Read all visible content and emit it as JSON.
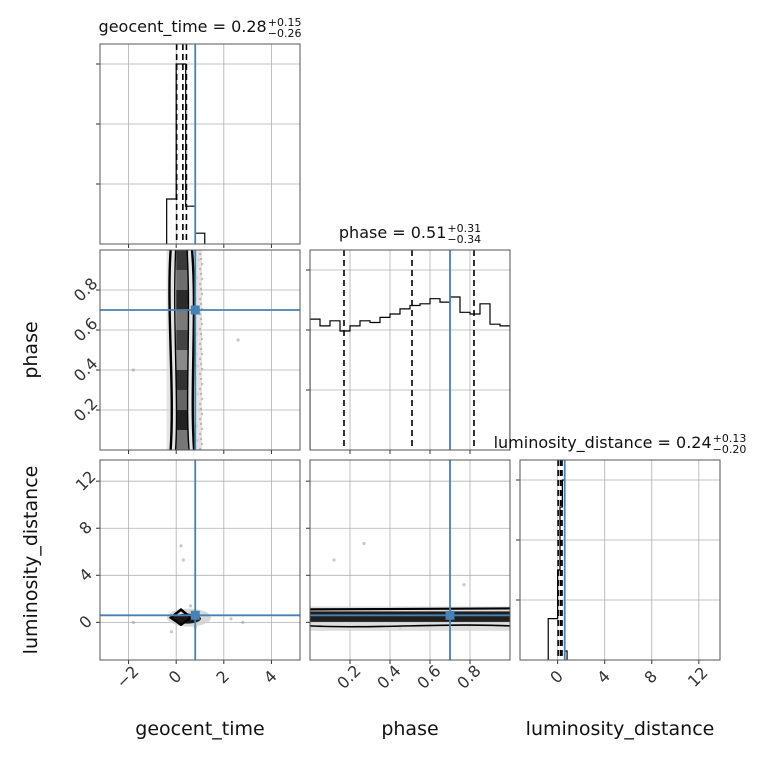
{
  "chart_data": {
    "type": "corner",
    "colors": {
      "truth": "#4682b4",
      "hist": "#000000",
      "grid": "#b0b0b0",
      "scatter": "#9a9a9a"
    },
    "parameters": [
      "geocent_time",
      "phase",
      "luminosity_distance"
    ],
    "truths": {
      "geocent_time": 0.8,
      "phase": 0.7,
      "luminosity_distance": 0.6
    },
    "titles": [
      {
        "param": "geocent_time",
        "main": "geocent_time = 0.28",
        "sup": "+0.15",
        "sub": "−0.26"
      },
      {
        "param": "phase",
        "main": "phase = 0.51",
        "sup": "+0.31",
        "sub": "−0.34"
      },
      {
        "param": "luminosity_distance",
        "main": "luminosity_distance = 0.24",
        "sup": "+0.13",
        "sub": "−0.20"
      }
    ],
    "axes": {
      "geocent_time": {
        "range": [
          -3.2,
          5.2
        ],
        "ticks": [
          -2,
          0,
          2,
          4
        ],
        "tick_labels": [
          "−2",
          "0",
          "2",
          "4"
        ],
        "label": "geocent_time"
      },
      "phase": {
        "range": [
          0.0,
          1.0
        ],
        "ticks": [
          0.2,
          0.4,
          0.6,
          0.8
        ],
        "tick_labels": [
          "0.2",
          "0.4",
          "0.6",
          "0.8"
        ],
        "label": "phase"
      },
      "luminosity_distance": {
        "range": [
          -3.2,
          13.8
        ],
        "ticks": [
          0,
          4,
          8,
          12
        ],
        "tick_labels": [
          "0",
          "4",
          "8",
          "12"
        ],
        "label": "luminosity_distance"
      }
    },
    "marginals": {
      "geocent_time": {
        "bins": [
          -0.4,
          0.0,
          0.4,
          0.8,
          1.2
        ],
        "counts": [
          0.25,
          1.0,
          0.21,
          0.06
        ],
        "quantiles": [
          0.02,
          0.28,
          0.43
        ]
      },
      "phase": {
        "bins": [
          0.0,
          0.05,
          0.1,
          0.15,
          0.2,
          0.25,
          0.3,
          0.35,
          0.4,
          0.45,
          0.5,
          0.55,
          0.6,
          0.65,
          0.7,
          0.75,
          0.8,
          0.85,
          0.9,
          0.95,
          1.0
        ],
        "counts": [
          0.77,
          0.73,
          0.76,
          0.7,
          0.73,
          0.76,
          0.75,
          0.78,
          0.8,
          0.83,
          0.85,
          0.86,
          0.89,
          0.87,
          0.9,
          0.81,
          0.8,
          0.86,
          0.74,
          0.73
        ],
        "quantiles": [
          0.17,
          0.51,
          0.82
        ]
      },
      "luminosity_distance": {
        "bins": [
          -0.8,
          0.0,
          0.2,
          0.4,
          0.6,
          0.8
        ],
        "counts": [
          0.23,
          0.5,
          0.85,
          1.0,
          0.05
        ],
        "quantiles": [
          0.04,
          0.24,
          0.37
        ]
      }
    },
    "joint": {
      "phase_vs_geocent_time": {
        "scatter": [
          [
            0.8,
            0.76
          ],
          [
            0.8,
            0.66
          ],
          [
            0.85,
            0.58
          ],
          [
            0.85,
            0.48
          ],
          [
            0.8,
            0.36
          ],
          [
            0.9,
            0.28
          ],
          [
            0.95,
            0.2
          ],
          [
            0.85,
            0.12
          ],
          [
            0.9,
            0.05
          ],
          [
            0.8,
            0.92
          ],
          [
            0.85,
            0.86
          ],
          [
            0.9,
            0.42
          ],
          [
            -1.8,
            0.4
          ],
          [
            2.6,
            0.55
          ],
          [
            0.95,
            0.95
          ],
          [
            0.8,
            0.02
          ]
        ]
      },
      "luminosity_distance_vs_geocent_time": {
        "scatter": [
          [
            0.2,
            6.5
          ],
          [
            0.3,
            5.3
          ],
          [
            2.3,
            0.3
          ],
          [
            -1.8,
            0.0
          ],
          [
            0.8,
            -0.4
          ],
          [
            -0.2,
            -0.8
          ],
          [
            0.6,
            1.4
          ],
          [
            2.8,
            0.0
          ]
        ]
      },
      "luminosity_distance_vs_phase": {
        "scatter": [
          [
            0.12,
            5.3
          ],
          [
            0.27,
            6.7
          ],
          [
            0.77,
            3.2
          ],
          [
            0.45,
            -0.5
          ],
          [
            0.9,
            0.2
          ],
          [
            0.05,
            -0.3
          ]
        ]
      }
    }
  }
}
